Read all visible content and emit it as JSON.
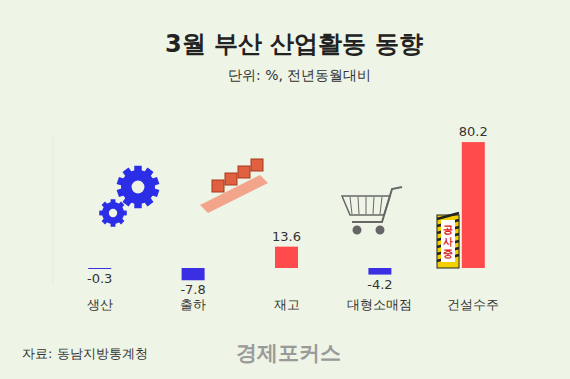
{
  "chart_data": {
    "type": "bar",
    "title": "3월 부산 산업활동 동향",
    "subtitle": "단위: %, 전년동월대비",
    "categories": [
      "생산",
      "출하",
      "재고",
      "대형소매점",
      "건설수주"
    ],
    "values": [
      -0.3,
      -7.8,
      13.6,
      -4.2,
      80.2
    ],
    "colors": [
      "#3b2fe3",
      "#3b2fe3",
      "#ff4b4b",
      "#3b2fe3",
      "#ff4b4b"
    ],
    "ylim": [
      -10,
      85
    ],
    "yticks": [],
    "tick_labels": "x",
    "grid": false,
    "data_labels": true,
    "sign_text": "공사중",
    "source": "자료: 동남지방통계청",
    "logo": "경제포커스"
  }
}
